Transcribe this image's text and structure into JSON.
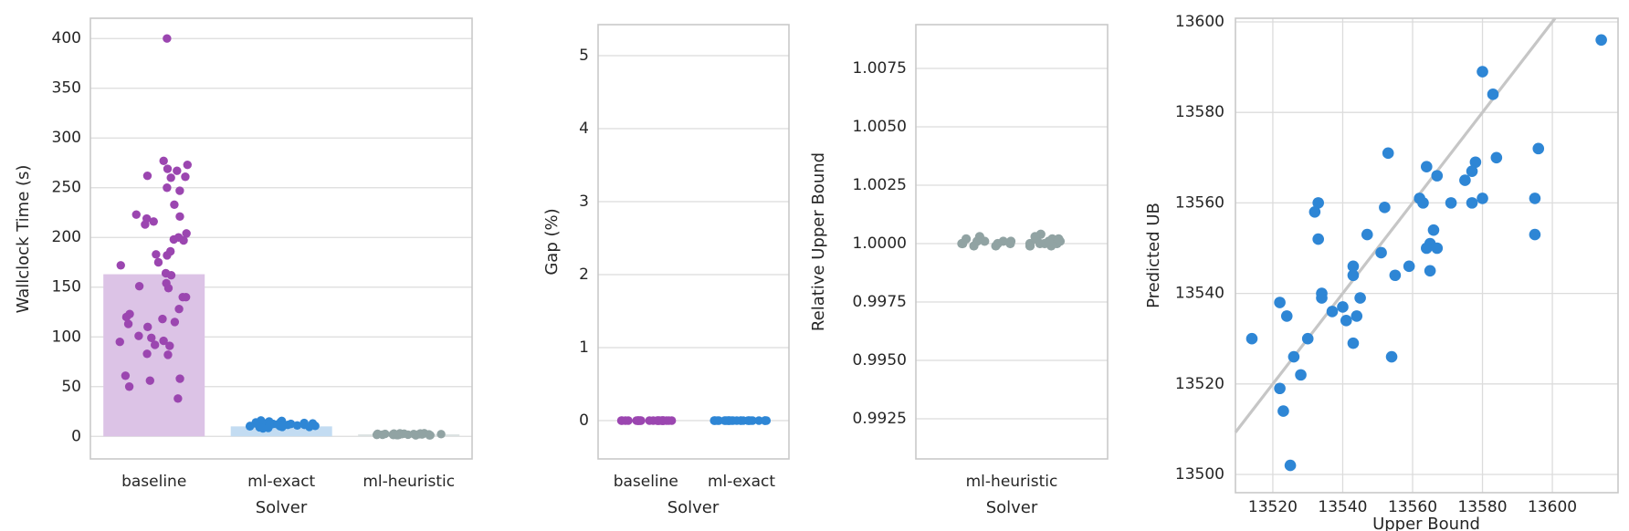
{
  "figure": {
    "background": "#ffffff"
  },
  "colors": {
    "purple_dot": "#9b46b0",
    "purple_bar": "#dcc3e6",
    "blue_dot": "#2e86d5",
    "blue_bar": "#c3dcf2",
    "gray_dot": "#91a3a3",
    "gray_bar": "#dbe2e2",
    "grid": "#dcdcdc",
    "spine": "#c9c9c9",
    "identity_line": "#c6c6c6",
    "text": "#262626"
  },
  "chart_data": [
    {
      "type": "bar",
      "title": "",
      "xlabel": "Solver",
      "ylabel": "Wallclock Time (s)",
      "categories": [
        "baseline",
        "ml-exact",
        "ml-heuristic"
      ],
      "bar_values": [
        163,
        10,
        2
      ],
      "ylim": [
        -22.7,
        420.4
      ],
      "yticks": [
        0,
        50,
        100,
        150,
        200,
        250,
        300,
        350,
        400
      ],
      "ytick_labels": [
        "0",
        "50",
        "100",
        "150",
        "200",
        "250",
        "300",
        "350",
        "400"
      ],
      "grid": "horizontal",
      "series": [
        {
          "name": "baseline",
          "color_key": "purple",
          "values": [
            400,
            277,
            273,
            269,
            267,
            262,
            261,
            260,
            250,
            247,
            233,
            223,
            221,
            219,
            216,
            213,
            204,
            200,
            198,
            197,
            186,
            183,
            182,
            175,
            172,
            164,
            162,
            154,
            151,
            149,
            140,
            140,
            128,
            123,
            120,
            118,
            115,
            113,
            110,
            101,
            99,
            96,
            95,
            92,
            91,
            83,
            82,
            61,
            58,
            56,
            50,
            38
          ]
        },
        {
          "name": "ml-exact",
          "color_key": "blue",
          "values": [
            16,
            15.5,
            15,
            14.5,
            14,
            14,
            13.5,
            13,
            13,
            12.5,
            12.5,
            12,
            12,
            11.5,
            11.5,
            11,
            11,
            10.5,
            10.5,
            10,
            10,
            9.5,
            9.5,
            9,
            8.5,
            8
          ]
        },
        {
          "name": "ml-heuristic",
          "color_key": "gray",
          "values": [
            3.2,
            3,
            2.9,
            2.8,
            2.7,
            2.6,
            2.5,
            2.5,
            2.4,
            2.3,
            2.2,
            2.1,
            2,
            2,
            1.9,
            1.8,
            1.7,
            1.6,
            1.5,
            1.5,
            1.4,
            1.3,
            1.2,
            1.1,
            1,
            1
          ]
        }
      ]
    },
    {
      "type": "strip",
      "title": "",
      "xlabel": "Solver",
      "ylabel": "Gap (%)",
      "categories": [
        "baseline",
        "ml-exact"
      ],
      "ylim": [
        -0.525,
        5.425
      ],
      "yticks": [
        0,
        1,
        2,
        3,
        4,
        5
      ],
      "ytick_labels": [
        "0",
        "1",
        "2",
        "3",
        "4",
        "5"
      ],
      "grid": "horizontal",
      "series": [
        {
          "name": "baseline",
          "color_key": "purple",
          "values": [
            0,
            0,
            0,
            0,
            0,
            0,
            0,
            0,
            0,
            0,
            0,
            0,
            0,
            0,
            0,
            0,
            0,
            0,
            0,
            0,
            0,
            0,
            0,
            0,
            0,
            0,
            0,
            0
          ]
        },
        {
          "name": "ml-exact",
          "color_key": "blue",
          "values": [
            0,
            0,
            0,
            0,
            0,
            0,
            0,
            0,
            0,
            0,
            0,
            0,
            0,
            0,
            0,
            0,
            0,
            0,
            0,
            0,
            0,
            0,
            0,
            0,
            0,
            0,
            0,
            0
          ]
        }
      ]
    },
    {
      "type": "strip",
      "title": "",
      "xlabel": "Solver",
      "ylabel": "Relative Upper Bound",
      "categories": [
        "ml-heuristic"
      ],
      "ylim": [
        0.990781,
        1.009375
      ],
      "yticks": [
        0.9925,
        0.995,
        0.9975,
        1.0,
        1.0025,
        1.005,
        1.0075
      ],
      "ytick_labels": [
        "0.9925",
        "0.9950",
        "0.9975",
        "1.0000",
        "1.0025",
        "1.0050",
        "1.0075"
      ],
      "grid": "horizontal",
      "series": [
        {
          "name": "ml-heuristic",
          "color_key": "gray",
          "values": [
            1.0002,
            1.0001,
            1.0,
            0.9999,
            1.0001,
            1.0003,
            1.0,
            1.0002,
            1.0,
            1.0001,
            0.9999,
            1.0,
            1.0004,
            1.0002,
            1.0001,
            0.9999,
            1.0,
            1.0001,
            1.0002,
            0.9999,
            1.0,
            1.0001,
            1.0003,
            1.0,
            0.9999,
            1.0002,
            1.0,
            1.0001
          ]
        }
      ]
    },
    {
      "type": "scatter",
      "title": "",
      "xlabel": "Upper Bound",
      "ylabel": "Predicted UB",
      "xlim": [
        13509.3,
        13618.8
      ],
      "ylim": [
        13495.97,
        13600.8
      ],
      "xticks": [
        13520,
        13540,
        13560,
        13580,
        13600
      ],
      "xtick_labels": [
        "13520",
        "13540",
        "13560",
        "13580",
        "13600"
      ],
      "yticks": [
        13500,
        13520,
        13540,
        13560,
        13580,
        13600
      ],
      "ytick_labels": [
        "13500",
        "13520",
        "13540",
        "13560",
        "13580",
        "13600"
      ],
      "grid": "both",
      "identity_line": true,
      "points": [
        [
          13614,
          13596
        ],
        [
          13580,
          13589
        ],
        [
          13583,
          13584
        ],
        [
          13596,
          13572
        ],
        [
          13553,
          13571
        ],
        [
          13584,
          13570
        ],
        [
          13564,
          13568
        ],
        [
          13578,
          13569
        ],
        [
          13577,
          13567
        ],
        [
          13567,
          13566
        ],
        [
          13575,
          13565
        ],
        [
          13562,
          13561
        ],
        [
          13563,
          13560
        ],
        [
          13580,
          13561
        ],
        [
          13595,
          13561
        ],
        [
          13571,
          13560
        ],
        [
          13533,
          13560
        ],
        [
          13577,
          13560
        ],
        [
          13552,
          13559
        ],
        [
          13532,
          13558
        ],
        [
          13566,
          13554
        ],
        [
          13595,
          13553
        ],
        [
          13547,
          13553
        ],
        [
          13533,
          13552
        ],
        [
          13565,
          13551
        ],
        [
          13564,
          13550
        ],
        [
          13567,
          13550
        ],
        [
          13551,
          13549
        ],
        [
          13543,
          13546
        ],
        [
          13559,
          13546
        ],
        [
          13565,
          13545
        ],
        [
          13543,
          13544
        ],
        [
          13555,
          13544
        ],
        [
          13534,
          13540
        ],
        [
          13534,
          13539
        ],
        [
          13522,
          13538
        ],
        [
          13540,
          13537
        ],
        [
          13537,
          13536
        ],
        [
          13524,
          13535
        ],
        [
          13544,
          13535
        ],
        [
          13541,
          13534
        ],
        [
          13545,
          13539
        ],
        [
          13530,
          13530
        ],
        [
          13514,
          13530
        ],
        [
          13543,
          13529
        ],
        [
          13526,
          13526
        ],
        [
          13554,
          13526
        ],
        [
          13528,
          13522
        ],
        [
          13522,
          13519
        ],
        [
          13523,
          13514
        ],
        [
          13525,
          13502
        ]
      ]
    }
  ]
}
